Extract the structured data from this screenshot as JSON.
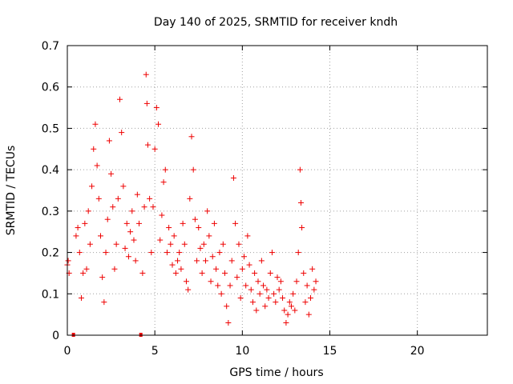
{
  "chart_data": {
    "type": "scatter",
    "title": "Day 140 of 2025, SRMTID for receiver kndh",
    "xlabel": "GPS time / hours",
    "ylabel": "SRMTID / TECUs",
    "xlim": [
      0,
      24
    ],
    "ylim": [
      0,
      0.7
    ],
    "xticks": [
      0,
      5,
      10,
      15,
      20
    ],
    "xtick_labels": [
      "0",
      "5",
      "10",
      "15",
      "20"
    ],
    "yticks": [
      0,
      0.1,
      0.2,
      0.3,
      0.4,
      0.5,
      0.6,
      0.7
    ],
    "ytick_labels": [
      "0",
      "0.1",
      "0.2",
      "0.3",
      "0.4",
      "0.5",
      "0.6",
      "0.7"
    ],
    "grid": true,
    "marker": "plus",
    "color": "#ee0000",
    "data_hours_range": [
      0,
      14.2
    ],
    "series": [
      {
        "name": "SRMTID",
        "points": [
          [
            0.0,
            0.17
          ],
          [
            0.05,
            0.18
          ],
          [
            0.1,
            0.15
          ],
          [
            0.35,
            0.0
          ],
          [
            0.5,
            0.24
          ],
          [
            0.6,
            0.26
          ],
          [
            0.7,
            0.2
          ],
          [
            0.8,
            0.09
          ],
          [
            0.9,
            0.15
          ],
          [
            1.0,
            0.27
          ],
          [
            1.1,
            0.16
          ],
          [
            1.2,
            0.3
          ],
          [
            1.3,
            0.22
          ],
          [
            1.4,
            0.36
          ],
          [
            1.5,
            0.45
          ],
          [
            1.6,
            0.51
          ],
          [
            1.7,
            0.41
          ],
          [
            1.8,
            0.33
          ],
          [
            1.9,
            0.24
          ],
          [
            2.0,
            0.14
          ],
          [
            2.1,
            0.08
          ],
          [
            2.2,
            0.2
          ],
          [
            2.3,
            0.28
          ],
          [
            2.4,
            0.47
          ],
          [
            2.5,
            0.39
          ],
          [
            2.6,
            0.31
          ],
          [
            2.7,
            0.16
          ],
          [
            2.8,
            0.22
          ],
          [
            2.9,
            0.33
          ],
          [
            3.0,
            0.57
          ],
          [
            3.1,
            0.49
          ],
          [
            3.2,
            0.36
          ],
          [
            3.3,
            0.21
          ],
          [
            3.4,
            0.27
          ],
          [
            3.5,
            0.19
          ],
          [
            3.6,
            0.25
          ],
          [
            3.7,
            0.3
          ],
          [
            3.8,
            0.23
          ],
          [
            3.9,
            0.18
          ],
          [
            4.0,
            0.34
          ],
          [
            4.1,
            0.27
          ],
          [
            4.2,
            0.0
          ],
          [
            4.3,
            0.15
          ],
          [
            4.4,
            0.31
          ],
          [
            4.5,
            0.63
          ],
          [
            4.55,
            0.56
          ],
          [
            4.6,
            0.46
          ],
          [
            4.7,
            0.33
          ],
          [
            4.8,
            0.2
          ],
          [
            4.9,
            0.31
          ],
          [
            5.0,
            0.45
          ],
          [
            5.1,
            0.55
          ],
          [
            5.2,
            0.51
          ],
          [
            5.3,
            0.23
          ],
          [
            5.4,
            0.29
          ],
          [
            5.5,
            0.37
          ],
          [
            5.6,
            0.4
          ],
          [
            5.7,
            0.2
          ],
          [
            5.8,
            0.26
          ],
          [
            5.9,
            0.22
          ],
          [
            6.0,
            0.17
          ],
          [
            6.1,
            0.24
          ],
          [
            6.2,
            0.15
          ],
          [
            6.3,
            0.18
          ],
          [
            6.4,
            0.2
          ],
          [
            6.5,
            0.16
          ],
          [
            6.6,
            0.27
          ],
          [
            6.7,
            0.22
          ],
          [
            6.8,
            0.13
          ],
          [
            6.9,
            0.11
          ],
          [
            7.0,
            0.33
          ],
          [
            7.1,
            0.48
          ],
          [
            7.2,
            0.4
          ],
          [
            7.3,
            0.28
          ],
          [
            7.4,
            0.18
          ],
          [
            7.5,
            0.26
          ],
          [
            7.6,
            0.21
          ],
          [
            7.7,
            0.15
          ],
          [
            7.8,
            0.22
          ],
          [
            7.9,
            0.18
          ],
          [
            8.0,
            0.3
          ],
          [
            8.1,
            0.24
          ],
          [
            8.2,
            0.13
          ],
          [
            8.3,
            0.19
          ],
          [
            8.4,
            0.27
          ],
          [
            8.5,
            0.16
          ],
          [
            8.6,
            0.12
          ],
          [
            8.7,
            0.2
          ],
          [
            8.8,
            0.1
          ],
          [
            8.9,
            0.22
          ],
          [
            9.0,
            0.15
          ],
          [
            9.1,
            0.07
          ],
          [
            9.2,
            0.03
          ],
          [
            9.3,
            0.12
          ],
          [
            9.4,
            0.18
          ],
          [
            9.5,
            0.38
          ],
          [
            9.6,
            0.27
          ],
          [
            9.7,
            0.14
          ],
          [
            9.8,
            0.22
          ],
          [
            9.9,
            0.09
          ],
          [
            10.0,
            0.16
          ],
          [
            10.1,
            0.19
          ],
          [
            10.2,
            0.12
          ],
          [
            10.3,
            0.24
          ],
          [
            10.4,
            0.17
          ],
          [
            10.5,
            0.11
          ],
          [
            10.6,
            0.08
          ],
          [
            10.7,
            0.15
          ],
          [
            10.8,
            0.06
          ],
          [
            10.9,
            0.13
          ],
          [
            11.0,
            0.1
          ],
          [
            11.1,
            0.18
          ],
          [
            11.2,
            0.12
          ],
          [
            11.3,
            0.07
          ],
          [
            11.4,
            0.11
          ],
          [
            11.5,
            0.09
          ],
          [
            11.6,
            0.15
          ],
          [
            11.7,
            0.2
          ],
          [
            11.8,
            0.1
          ],
          [
            11.9,
            0.08
          ],
          [
            12.0,
            0.14
          ],
          [
            12.1,
            0.11
          ],
          [
            12.2,
            0.13
          ],
          [
            12.3,
            0.09
          ],
          [
            12.4,
            0.06
          ],
          [
            12.5,
            0.03
          ],
          [
            12.6,
            0.05
          ],
          [
            12.7,
            0.08
          ],
          [
            12.8,
            0.07
          ],
          [
            12.9,
            0.1
          ],
          [
            13.0,
            0.06
          ],
          [
            13.1,
            0.13
          ],
          [
            13.2,
            0.2
          ],
          [
            13.3,
            0.4
          ],
          [
            13.35,
            0.32
          ],
          [
            13.4,
            0.26
          ],
          [
            13.5,
            0.15
          ],
          [
            13.6,
            0.08
          ],
          [
            13.7,
            0.12
          ],
          [
            13.8,
            0.05
          ],
          [
            13.9,
            0.09
          ],
          [
            14.0,
            0.16
          ],
          [
            14.1,
            0.11
          ],
          [
            14.2,
            0.13
          ]
        ]
      }
    ]
  }
}
